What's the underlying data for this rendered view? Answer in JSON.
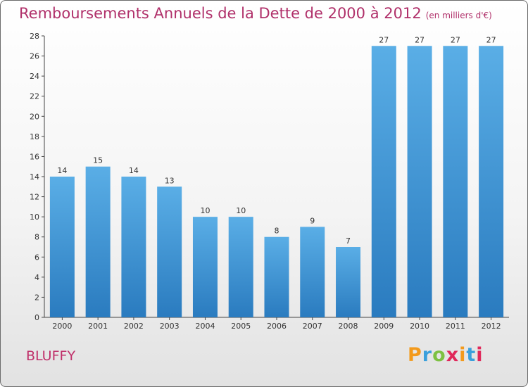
{
  "header": {
    "title": "Remboursements Annuels de la Dette de 2000 à 2012",
    "unit": "(en milliers d'€)"
  },
  "place": "BLUFFY",
  "logo": {
    "letters": [
      "P",
      "r",
      "o",
      "x",
      "i",
      "t",
      "i"
    ],
    "colors": [
      "#f39a1c",
      "#3aa0dc",
      "#7dc142",
      "#e0285a",
      "#f39a1c",
      "#3aa0dc",
      "#e0285a"
    ]
  },
  "colors": {
    "title": "#b0306a",
    "bar_top": "#5aaee6",
    "bar_bottom": "#2a7bbf"
  },
  "chart_data": {
    "type": "bar",
    "categories": [
      "2000",
      "2001",
      "2002",
      "2003",
      "2004",
      "2005",
      "2006",
      "2007",
      "2008",
      "2009",
      "2010",
      "2011",
      "2012"
    ],
    "values": [
      14,
      15,
      14,
      13,
      10,
      10,
      8,
      9,
      7,
      27,
      27,
      27,
      27
    ],
    "ylim": [
      0,
      28
    ],
    "yticks": [
      0,
      2,
      4,
      6,
      8,
      10,
      12,
      14,
      16,
      18,
      20,
      22,
      24,
      26,
      28
    ],
    "grid": false,
    "data_labels": true
  }
}
